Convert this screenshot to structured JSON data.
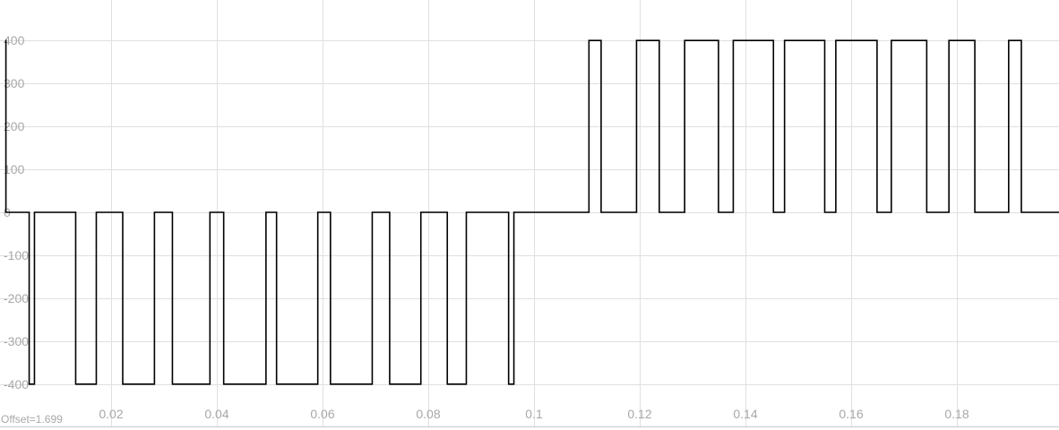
{
  "chart_data": {
    "type": "line",
    "title": "",
    "xlabel": "",
    "ylabel": "",
    "offset_label": "Offset=1.699",
    "xlim": [
      0,
      0.2
    ],
    "ylim": [
      -420,
      440
    ],
    "grid": true,
    "x_ticks": [
      0.02,
      0.04,
      0.06,
      0.08,
      0.1,
      0.12,
      0.14,
      0.16,
      0.18
    ],
    "x_tick_labels": [
      "0.02",
      "0.04",
      "0.06",
      "0.08",
      "0.1",
      "0.12",
      "0.14",
      "0.16",
      "0.18"
    ],
    "y_ticks": [
      400,
      300,
      200,
      100,
      0,
      -100,
      -200,
      -300,
      -400
    ],
    "y_tick_labels": [
      "400",
      "300",
      "200",
      "100",
      "0",
      "-100",
      "-200",
      "-300",
      "-400"
    ],
    "series": [
      {
        "color": "#000000",
        "x": [
          0,
          0.0001,
          0.0001,
          0.0045,
          0.0045,
          0.0055,
          0.0055,
          0.0133,
          0.0133,
          0.0172,
          0.0172,
          0.0222,
          0.0222,
          0.0282,
          0.0282,
          0.0316,
          0.0316,
          0.0387,
          0.0387,
          0.0413,
          0.0413,
          0.0493,
          0.0493,
          0.0513,
          0.0513,
          0.0591,
          0.0591,
          0.0615,
          0.0615,
          0.0694,
          0.0694,
          0.0727,
          0.0727,
          0.0786,
          0.0786,
          0.0836,
          0.0836,
          0.0872,
          0.0872,
          0.0952,
          0.0952,
          0.0962,
          0.0962,
          0.0972,
          0.0972,
          0.1104,
          0.1104,
          0.1127,
          0.1127,
          0.1194,
          0.1194,
          0.1237,
          0.1237,
          0.1285,
          0.1285,
          0.1349,
          0.1349,
          0.1377,
          0.1377,
          0.1453,
          0.1453,
          0.1474,
          0.1474,
          0.155,
          0.155,
          0.1571,
          0.1571,
          0.1649,
          0.1649,
          0.1676,
          0.1676,
          0.1743,
          0.1743,
          0.1785,
          0.1785,
          0.1834,
          0.1834,
          0.1898,
          0.1898,
          0.1922,
          0.1922,
          0.2
        ],
        "y": [
          400,
          400,
          0,
          0,
          -400,
          -400,
          0,
          0,
          -400,
          -400,
          0,
          0,
          -400,
          -400,
          0,
          0,
          -400,
          -400,
          0,
          0,
          -400,
          -400,
          0,
          0,
          -400,
          -400,
          0,
          0,
          -400,
          -400,
          0,
          0,
          -400,
          -400,
          0,
          0,
          -400,
          -400,
          0,
          0,
          -400,
          -400,
          0,
          0,
          0,
          0,
          400,
          400,
          0,
          0,
          400,
          400,
          0,
          0,
          400,
          400,
          0,
          0,
          400,
          400,
          0,
          0,
          400,
          400,
          0,
          0,
          400,
          400,
          0,
          0,
          400,
          400,
          0,
          0,
          400,
          400,
          0,
          0,
          400,
          400,
          0,
          0
        ]
      }
    ]
  }
}
